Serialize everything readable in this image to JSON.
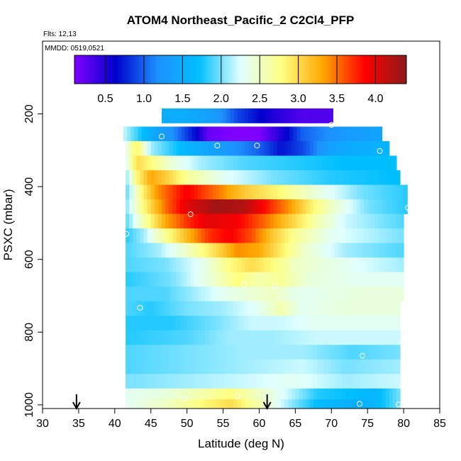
{
  "chart_data": {
    "type": "heatmap",
    "title": "ATOM4 Northeast_Pacific_2 C2Cl4_PFP",
    "subtitle_flights": "Flts: 12,13",
    "subtitle_dates": "MMDD: 0519,0521",
    "xlabel": "Latitude (deg N)",
    "ylabel": "PSXC (mbar)",
    "xlim": [
      30,
      85
    ],
    "ylim": [
      1010,
      0
    ],
    "x_ticks": [
      "30",
      "35",
      "40",
      "45",
      "50",
      "55",
      "60",
      "65",
      "70",
      "75",
      "80",
      "85"
    ],
    "y_ticks": [
      "200",
      "400",
      "600",
      "800",
      "1000"
    ],
    "colorbar": {
      "range": [
        0.1,
        4.4
      ],
      "ticks": [
        "0.5",
        "1.0",
        "1.5",
        "2.0",
        "2.5",
        "3.0",
        "3.5",
        "4.0"
      ],
      "colors": [
        "#7f00ff",
        "#0000cd",
        "#1e90ff",
        "#00bfff",
        "#e0ffff",
        "#ffff80",
        "#ffa500",
        "#ff0000",
        "#8b1a1a"
      ]
    },
    "arrows_x": [
      34.7,
      61.1
    ],
    "layers": [
      {
        "p": 205,
        "x0": 46.5,
        "x1": 70.2,
        "knots": [
          [
            46.5,
            1.5
          ],
          [
            50,
            1.5
          ],
          [
            54,
            1.3
          ],
          [
            57,
            0.9
          ],
          [
            62,
            0.5
          ],
          [
            66,
            0.3
          ],
          [
            70,
            0.3
          ]
        ]
      },
      {
        "p": 255,
        "x0": 41.2,
        "x1": 77.0,
        "knots": [
          [
            41.2,
            2.2
          ],
          [
            45,
            1.5
          ],
          [
            48,
            1.2
          ],
          [
            51,
            0.7
          ],
          [
            53,
            0.2
          ],
          [
            56,
            0.1
          ],
          [
            60,
            0.1
          ],
          [
            63,
            0.5
          ],
          [
            66,
            1.0
          ],
          [
            72,
            1.3
          ],
          [
            77,
            1.4
          ]
        ]
      },
      {
        "p": 295,
        "x0": 41.5,
        "x1": 78.0,
        "knots": [
          [
            41.5,
            2.3
          ],
          [
            43,
            2.9
          ],
          [
            45,
            2.1
          ],
          [
            50,
            1.6
          ],
          [
            55,
            1.3
          ],
          [
            60,
            1.0
          ],
          [
            63,
            0.7
          ],
          [
            66,
            0.9
          ],
          [
            70,
            1.4
          ],
          [
            78,
            1.6
          ]
        ]
      },
      {
        "p": 335,
        "x0": 41.5,
        "x1": 79.0,
        "knots": [
          [
            41.5,
            2.2
          ],
          [
            43,
            3.0
          ],
          [
            45,
            2.8
          ],
          [
            48,
            2.4
          ],
          [
            52,
            2.1
          ],
          [
            58,
            1.9
          ],
          [
            65,
            1.8
          ],
          [
            72,
            1.7
          ],
          [
            79,
            1.7
          ]
        ]
      },
      {
        "p": 375,
        "x0": 41.5,
        "x1": 79.5,
        "knots": [
          [
            41.5,
            2.0
          ],
          [
            43,
            2.8
          ],
          [
            45,
            3.3
          ],
          [
            47,
            3.1
          ],
          [
            50,
            2.7
          ],
          [
            55,
            2.3
          ],
          [
            62,
            2.0
          ],
          [
            70,
            1.8
          ],
          [
            79.5,
            1.7
          ]
        ]
      },
      {
        "p": 415,
        "x0": 41.5,
        "x1": 80.5,
        "knots": [
          [
            41.5,
            1.9
          ],
          [
            44,
            2.9
          ],
          [
            46,
            3.4
          ],
          [
            50,
            3.9
          ],
          [
            54,
            3.5
          ],
          [
            58,
            3.1
          ],
          [
            63,
            2.8
          ],
          [
            68,
            2.4
          ],
          [
            74,
            2.0
          ],
          [
            80.5,
            1.8
          ]
        ]
      },
      {
        "p": 455,
        "x0": 41.5,
        "x1": 80.5,
        "knots": [
          [
            41.5,
            2.0
          ],
          [
            44,
            2.8
          ],
          [
            47,
            3.5
          ],
          [
            50,
            4.0
          ],
          [
            54,
            4.3
          ],
          [
            58,
            4.2
          ],
          [
            61,
            3.8
          ],
          [
            64,
            3.4
          ],
          [
            67,
            2.9
          ],
          [
            70,
            2.5
          ],
          [
            75,
            2.0
          ],
          [
            80.5,
            1.8
          ]
        ]
      },
      {
        "p": 495,
        "x0": 41.5,
        "x1": 80.0,
        "knots": [
          [
            41.5,
            1.9
          ],
          [
            44,
            2.6
          ],
          [
            47,
            3.3
          ],
          [
            50,
            3.7
          ],
          [
            53,
            4.0
          ],
          [
            57,
            3.9
          ],
          [
            61,
            3.5
          ],
          [
            65,
            3.0
          ],
          [
            68,
            2.6
          ],
          [
            72,
            2.2
          ],
          [
            80,
            1.9
          ]
        ]
      },
      {
        "p": 535,
        "x0": 41.5,
        "x1": 80.0,
        "knots": [
          [
            41.5,
            1.8
          ],
          [
            44,
            2.1
          ],
          [
            47,
            2.7
          ],
          [
            50,
            3.2
          ],
          [
            53,
            3.7
          ],
          [
            56,
            3.9
          ],
          [
            59,
            3.6
          ],
          [
            62,
            3.1
          ],
          [
            65,
            2.7
          ],
          [
            70,
            2.3
          ],
          [
            80,
            2.0
          ]
        ]
      },
      {
        "p": 575,
        "x0": 41.5,
        "x1": 80.0,
        "knots": [
          [
            41.5,
            1.9
          ],
          [
            46,
            2.1
          ],
          [
            50,
            2.5
          ],
          [
            54,
            3.0
          ],
          [
            57,
            3.4
          ],
          [
            60,
            3.3
          ],
          [
            63,
            2.9
          ],
          [
            66,
            2.5
          ],
          [
            72,
            2.1
          ],
          [
            80,
            1.9
          ]
        ]
      },
      {
        "p": 615,
        "x0": 41.5,
        "x1": 80.0,
        "knots": [
          [
            41.5,
            1.9
          ],
          [
            47,
            2.0
          ],
          [
            52,
            2.3
          ],
          [
            56,
            2.8
          ],
          [
            59,
            3.0
          ],
          [
            62,
            2.8
          ],
          [
            65,
            2.5
          ],
          [
            72,
            2.3
          ],
          [
            80,
            2.1
          ]
        ]
      },
      {
        "p": 655,
        "x0": 41.5,
        "x1": 80.0,
        "knots": [
          [
            41.5,
            1.8
          ],
          [
            48,
            2.0
          ],
          [
            53,
            2.4
          ],
          [
            57,
            2.8
          ],
          [
            60,
            2.6
          ],
          [
            63,
            2.7
          ],
          [
            67,
            2.4
          ],
          [
            74,
            2.3
          ],
          [
            80,
            2.3
          ]
        ]
      },
      {
        "p": 695,
        "x0": 41.5,
        "x1": 80.0,
        "knots": [
          [
            41.5,
            1.9
          ],
          [
            47,
            1.9
          ],
          [
            51,
            2.1
          ],
          [
            55,
            2.3
          ],
          [
            58,
            2.4
          ],
          [
            62,
            2.5
          ],
          [
            66,
            2.3
          ],
          [
            74,
            2.4
          ],
          [
            80,
            2.4
          ]
        ]
      },
      {
        "p": 735,
        "x0": 41.5,
        "x1": 79.5,
        "knots": [
          [
            41.5,
            1.9
          ],
          [
            45,
            1.8
          ],
          [
            50,
            2.0
          ],
          [
            55,
            2.1
          ],
          [
            60,
            2.3
          ],
          [
            63,
            2.6
          ],
          [
            66,
            2.3
          ],
          [
            72,
            2.4
          ],
          [
            79.5,
            2.4
          ]
        ]
      },
      {
        "p": 775,
        "x0": 41.5,
        "x1": 79.5,
        "knots": [
          [
            41.5,
            1.8
          ],
          [
            48,
            1.8
          ],
          [
            54,
            2.0
          ],
          [
            59,
            2.2
          ],
          [
            63,
            2.2
          ],
          [
            68,
            2.3
          ],
          [
            74,
            2.3
          ],
          [
            79.5,
            2.3
          ]
        ]
      },
      {
        "p": 815,
        "x0": 41.5,
        "x1": 79.5,
        "knots": [
          [
            41.5,
            1.8
          ],
          [
            50,
            1.9
          ],
          [
            56,
            2.1
          ],
          [
            62,
            2.1
          ],
          [
            68,
            2.2
          ],
          [
            74,
            2.2
          ],
          [
            79.5,
            2.2
          ]
        ]
      },
      {
        "p": 855,
        "x0": 41.5,
        "x1": 79.5,
        "knots": [
          [
            41.5,
            1.9
          ],
          [
            50,
            2.0
          ],
          [
            58,
            2.1
          ],
          [
            66,
            2.1
          ],
          [
            73,
            1.9
          ],
          [
            79.5,
            2.0
          ]
        ]
      },
      {
        "p": 895,
        "x0": 41.5,
        "x1": 79.5,
        "knots": [
          [
            41.5,
            1.9
          ],
          [
            50,
            2.0
          ],
          [
            58,
            2.1
          ],
          [
            66,
            2.2
          ],
          [
            72,
            2.0
          ],
          [
            79.5,
            2.1
          ]
        ]
      },
      {
        "p": 935,
        "x0": 41.5,
        "x1": 79.5,
        "knots": [
          [
            41.5,
            2.0
          ],
          [
            50,
            2.1
          ],
          [
            58,
            2.2
          ],
          [
            65,
            2.3
          ],
          [
            72,
            2.1
          ],
          [
            79.5,
            2.2
          ]
        ]
      },
      {
        "p": 975,
        "x0": 41.5,
        "x1": 79.5,
        "knots": [
          [
            41.5,
            2.3
          ],
          [
            47,
            2.4
          ],
          [
            52,
            2.6
          ],
          [
            56,
            2.8
          ],
          [
            60,
            2.5
          ],
          [
            64,
            2.2
          ],
          [
            68,
            1.8
          ],
          [
            73,
            1.7
          ],
          [
            76,
            1.6
          ],
          [
            79.5,
            2.0
          ]
        ]
      },
      {
        "p": 1005,
        "x0": 41.5,
        "x1": 79.5,
        "knots": [
          [
            41.5,
            2.3
          ],
          [
            47,
            2.5
          ],
          [
            52,
            2.8
          ],
          [
            56,
            3.0
          ],
          [
            60,
            2.6
          ],
          [
            64,
            2.1
          ],
          [
            68,
            1.7
          ],
          [
            73,
            1.5
          ],
          [
            76,
            1.6
          ],
          [
            79.5,
            2.0
          ]
        ]
      }
    ],
    "points": [
      {
        "lat": 70.0,
        "p": 230
      },
      {
        "lat": 46.5,
        "p": 262
      },
      {
        "lat": 54.2,
        "p": 287
      },
      {
        "lat": 59.7,
        "p": 287
      },
      {
        "lat": 76.7,
        "p": 302
      },
      {
        "lat": 80.6,
        "p": 458
      },
      {
        "lat": 50.5,
        "p": 476
      },
      {
        "lat": 41.6,
        "p": 530
      },
      {
        "lat": 57.9,
        "p": 669
      },
      {
        "lat": 62.2,
        "p": 675
      },
      {
        "lat": 43.5,
        "p": 733
      },
      {
        "lat": 74.3,
        "p": 865
      },
      {
        "lat": 57.0,
        "p": 975
      },
      {
        "lat": 49.6,
        "p": 983
      },
      {
        "lat": 41.5,
        "p": 1000
      },
      {
        "lat": 73.9,
        "p": 997
      },
      {
        "lat": 79.3,
        "p": 999
      }
    ]
  }
}
